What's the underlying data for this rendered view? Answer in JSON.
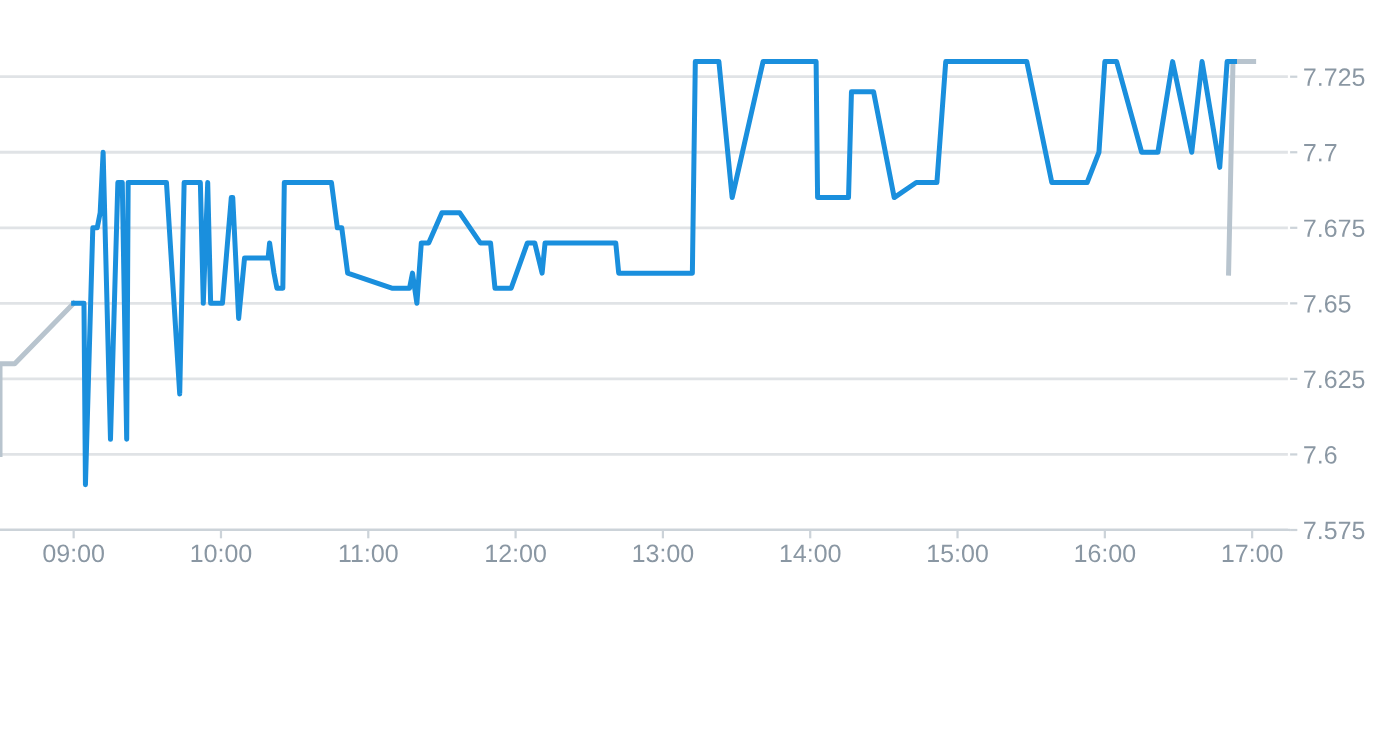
{
  "chart_data": {
    "type": "line",
    "xlim": [
      8.5,
      17.25
    ],
    "xticks": [
      {
        "value": 9,
        "label": "09:00"
      },
      {
        "value": 10,
        "label": "10:00"
      },
      {
        "value": 11,
        "label": "11:00"
      },
      {
        "value": 12,
        "label": "12:00"
      },
      {
        "value": 13,
        "label": "13:00"
      },
      {
        "value": 14,
        "label": "14:00"
      },
      {
        "value": 15,
        "label": "15:00"
      },
      {
        "value": 16,
        "label": "16:00"
      },
      {
        "value": 17,
        "label": "17:00"
      }
    ],
    "ylim": [
      7.575,
      7.74
    ],
    "yticks": [
      7.575,
      7.6,
      7.625,
      7.65,
      7.675,
      7.7,
      7.725
    ],
    "grid": "y",
    "legend": false,
    "marker": "none",
    "line_style": "solid",
    "series": [
      {
        "color": "#b8c4ce",
        "x": [
          8.5,
          8.5,
          8.6,
          9.0
        ],
        "values": [
          7.6,
          7.63,
          7.63,
          7.65
        ]
      },
      {
        "color": "#b8c4ce",
        "x": [
          16.84,
          16.87,
          17.01
        ],
        "values": [
          7.66,
          7.73,
          7.73
        ]
      },
      {
        "color": "#1a8fdd",
        "x": [
          9.0,
          9.07,
          9.08,
          9.13,
          9.16,
          9.18,
          9.2,
          9.25,
          9.3,
          9.33,
          9.36,
          9.37,
          9.63,
          9.72,
          9.75,
          9.86,
          9.88,
          9.91,
          9.93,
          10.01,
          10.07,
          10.08,
          10.12,
          10.16,
          10.32,
          10.33,
          10.36,
          10.38,
          10.42,
          10.43,
          10.75,
          10.79,
          10.82,
          10.86,
          11.16,
          11.28,
          11.3,
          11.33,
          11.36,
          11.41,
          11.5,
          11.62,
          11.76,
          11.83,
          11.86,
          11.97,
          12.08,
          12.13,
          12.18,
          12.2,
          12.68,
          12.7,
          13.2,
          13.22,
          13.38,
          13.47,
          13.68,
          14.04,
          14.05,
          14.26,
          14.28,
          14.43,
          14.57,
          14.72,
          14.86,
          14.92,
          15.47,
          15.64,
          15.88,
          15.96,
          16.0,
          16.08,
          16.25,
          16.36,
          16.46,
          16.59,
          16.66,
          16.78,
          16.83,
          16.88
        ],
        "values": [
          7.65,
          7.65,
          7.59,
          7.675,
          7.675,
          7.68,
          7.7,
          7.605,
          7.69,
          7.69,
          7.605,
          7.69,
          7.69,
          7.62,
          7.69,
          7.69,
          7.65,
          7.69,
          7.65,
          7.65,
          7.685,
          7.685,
          7.645,
          7.665,
          7.665,
          7.67,
          7.66,
          7.655,
          7.655,
          7.69,
          7.69,
          7.675,
          7.675,
          7.66,
          7.655,
          7.655,
          7.66,
          7.65,
          7.67,
          7.67,
          7.68,
          7.68,
          7.67,
          7.67,
          7.655,
          7.655,
          7.67,
          7.67,
          7.66,
          7.67,
          7.67,
          7.66,
          7.66,
          7.73,
          7.73,
          7.685,
          7.73,
          7.73,
          7.685,
          7.685,
          7.72,
          7.72,
          7.685,
          7.69,
          7.69,
          7.73,
          7.73,
          7.69,
          7.69,
          7.7,
          7.73,
          7.73,
          7.7,
          7.7,
          7.73,
          7.7,
          7.73,
          7.695,
          7.73,
          7.73
        ]
      }
    ]
  }
}
